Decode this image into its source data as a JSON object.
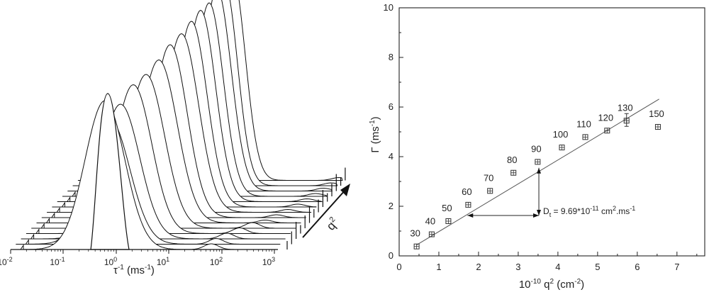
{
  "left_panel": {
    "x_tick_labels": [
      "10",
      "10",
      "10",
      "10",
      "10",
      "10"
    ],
    "x_tick_exponents": [
      "-2",
      "-1",
      "0",
      "1",
      "2",
      "3"
    ],
    "x_axis_label": "τ",
    "x_axis_label_sup": "-1",
    "x_axis_label_unit": " (ms",
    "x_axis_label_unit_sup": "-1",
    "x_axis_label_close": ")",
    "depth_axis_label": "q",
    "depth_axis_label_sup": "2",
    "colors": {
      "stroke": "#111111",
      "fill": "#ffffff"
    }
  },
  "chart_data": {
    "type": "scatter",
    "x_axis_label_prefix": "10",
    "x_axis_label_prefix_sup": "-10",
    "x_axis_label_main": " q",
    "x_axis_label_main_sup": "2",
    "x_axis_label_unit": " (cm",
    "x_axis_label_unit_sup": "-2",
    "x_axis_label_close": ")",
    "y_axis_label": "Γ (ms",
    "y_axis_label_sup": "-1",
    "y_axis_label_close": ")",
    "xlim": [
      0,
      7.7
    ],
    "ylim": [
      0,
      10
    ],
    "x_ticks": [
      "0",
      "1",
      "2",
      "3",
      "4",
      "5",
      "6",
      "7"
    ],
    "y_ticks": [
      "0",
      "2",
      "4",
      "6",
      "8",
      "10"
    ],
    "points": [
      {
        "x": 0.44,
        "y": 0.38,
        "label": "30"
      },
      {
        "x": 0.82,
        "y": 0.87,
        "label": "40"
      },
      {
        "x": 1.24,
        "y": 1.4,
        "label": "50"
      },
      {
        "x": 1.74,
        "y": 2.06,
        "label": "60"
      },
      {
        "x": 2.29,
        "y": 2.62,
        "label": "70"
      },
      {
        "x": 2.88,
        "y": 3.35,
        "label": "80"
      },
      {
        "x": 3.49,
        "y": 3.79,
        "label": "90"
      },
      {
        "x": 4.1,
        "y": 4.37,
        "label": "100"
      },
      {
        "x": 4.69,
        "y": 4.79,
        "label": "110"
      },
      {
        "x": 5.24,
        "y": 5.05,
        "label": "120"
      },
      {
        "x": 5.73,
        "y": 5.45,
        "label": "130"
      },
      {
        "x": 6.52,
        "y": 5.2,
        "label": "150"
      }
    ],
    "fit_line": {
      "x": [
        0.44,
        6.55
      ],
      "y": [
        0.44,
        6.32
      ]
    },
    "annotation": {
      "prefix": "D",
      "prefix_sub": "t",
      "text_a": " = 9.69*10",
      "sup_a": "-11",
      "text_b": " cm",
      "sup_b": "2",
      "text_c": ".ms",
      "sup_c": "-1",
      "h_arrow": {
        "x": [
          1.72,
          3.52
        ],
        "y": 1.63
      },
      "v_arrow": {
        "x": 3.52,
        "y": [
          1.63,
          3.55
        ]
      }
    },
    "colors": {
      "marker": "#333333",
      "line": "#555555",
      "axis": "#222222"
    }
  }
}
